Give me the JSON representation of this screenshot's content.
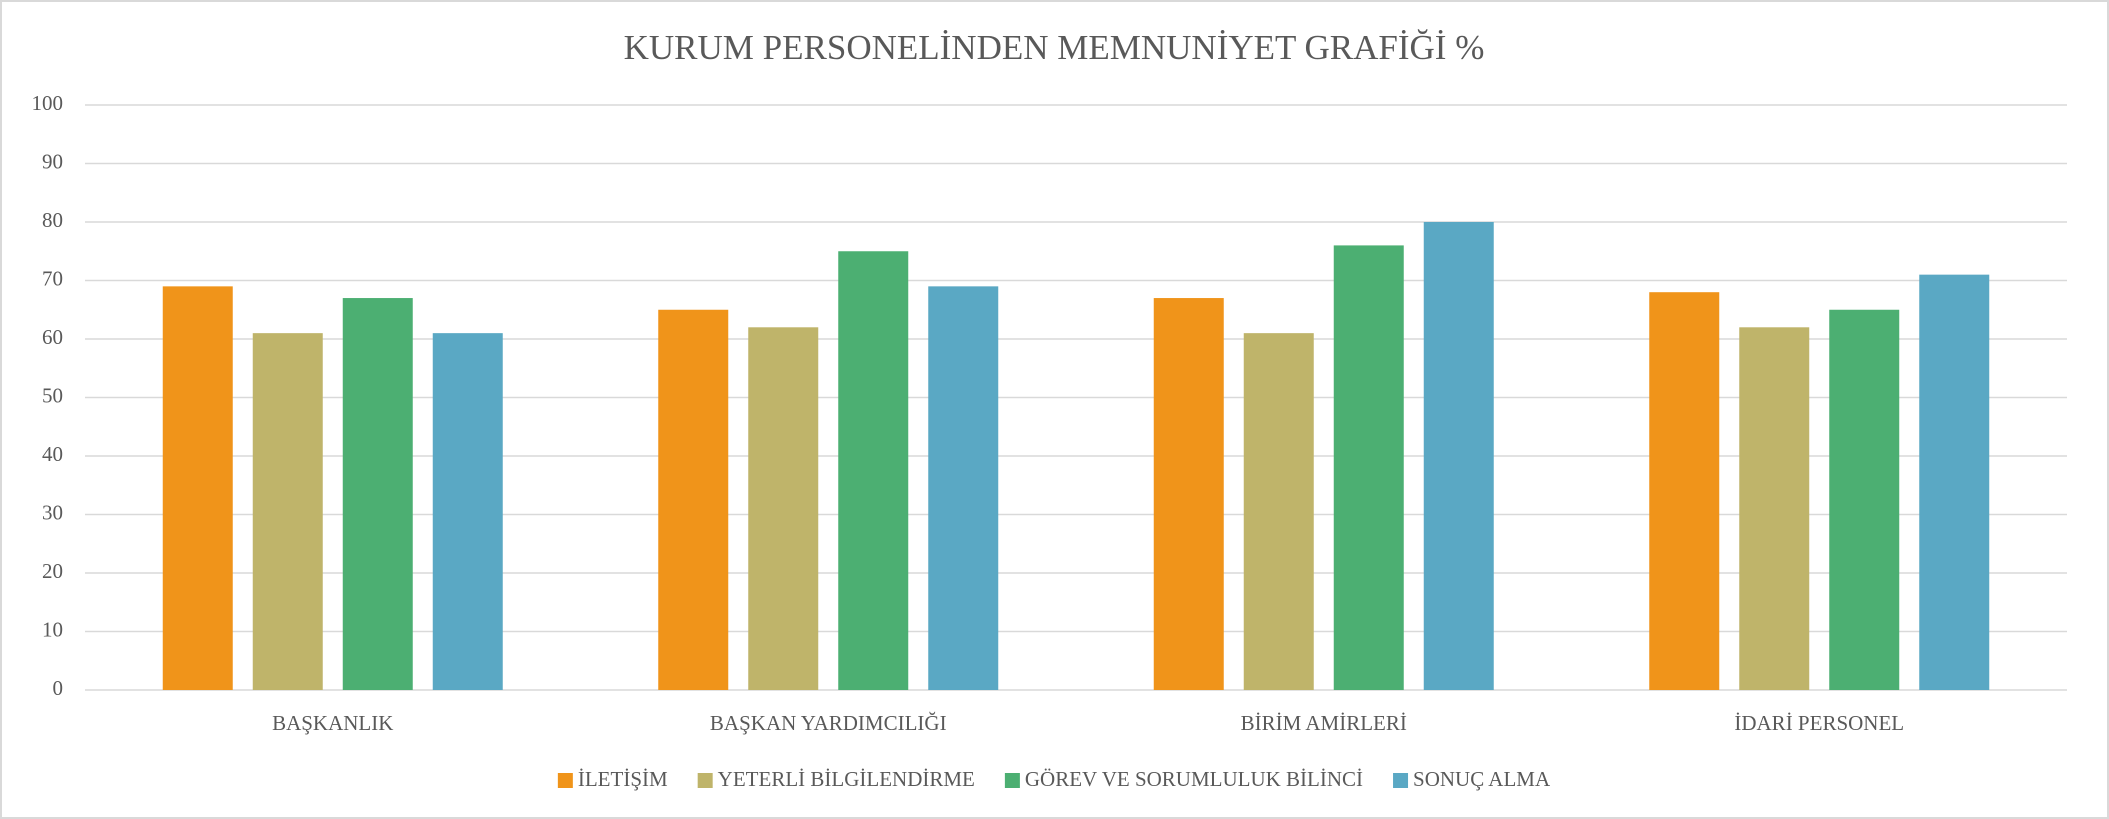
{
  "chart_data": {
    "type": "bar",
    "title": "KURUM PERSONELİNDEN MEMNUNİYET GRAFİĞİ  %",
    "categories": [
      "BAŞKANLIK",
      "BAŞKAN YARDIMCILIĞI",
      "BİRİM AMİRLERİ",
      "İDARİ PERSONEL"
    ],
    "series": [
      {
        "name": "İLETİŞİM",
        "color": "#f0941a",
        "values": [
          69,
          65,
          67,
          68
        ]
      },
      {
        "name": "YETERLİ BİLGİLENDİRME",
        "color": "#bfb46a",
        "values": [
          61,
          62,
          61,
          62
        ]
      },
      {
        "name": "GÖREV VE SORUMLULUK BİLİNCİ",
        "color": "#4caf72",
        "values": [
          67,
          75,
          76,
          65
        ]
      },
      {
        "name": "SONUÇ ALMA",
        "color": "#5aa8c4",
        "values": [
          61,
          69,
          80,
          71
        ]
      }
    ],
    "ylim": [
      0,
      100
    ],
    "yticks": [
      0,
      10,
      20,
      30,
      40,
      50,
      60,
      70,
      80,
      90,
      100
    ],
    "grid": true,
    "legend": "bottom"
  }
}
